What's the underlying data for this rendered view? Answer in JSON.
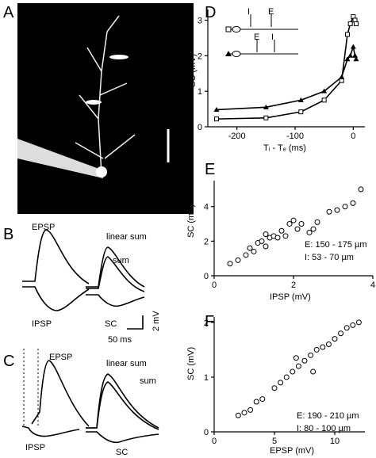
{
  "panels": {
    "A": "A",
    "B": "B",
    "C": "C",
    "D": "D",
    "E": "E",
    "F": "F"
  },
  "B": {
    "epsp": "EPSP",
    "ipsp": "IPSP",
    "linear": "linear sum",
    "sum": "sum",
    "sc": "SC",
    "scale_v": "2 mV",
    "scale_t": "50 ms"
  },
  "C": {
    "epsp": "EPSP",
    "ipsp": "IPSP",
    "linear": "linear sum",
    "sum": "sum",
    "sc": "SC"
  },
  "D": {
    "ylabel": "SC  (mV)",
    "xlabel": "Tᵢ - Tₑ  (ms)",
    "inset": {
      "row1": [
        "I",
        "E"
      ],
      "row2": [
        "E",
        "I"
      ]
    },
    "yticks": [
      "0",
      "1",
      "2",
      "3"
    ],
    "xticks": [
      "-200",
      "-100",
      "0"
    ]
  },
  "E": {
    "ylabel": "SC  (mV)",
    "xlabel": "IPSP  (mV)",
    "yticks": [
      "0",
      "2",
      "4"
    ],
    "xticks": [
      "0",
      "2",
      "4"
    ],
    "legend": [
      "E: 150 - 175 µm",
      "I:  53 - 70 µm"
    ]
  },
  "F": {
    "ylabel": "SC  (mV)",
    "xlabel": "EPSP  (mV)",
    "yticks": [
      "0",
      "1",
      "2"
    ],
    "xticks": [
      "0",
      "5",
      "10"
    ],
    "legend": [
      "E: 190 - 210 µm",
      "I:  80 - 100 µm"
    ]
  },
  "chart_data": [
    {
      "type": "line",
      "x": [
        -235,
        -150,
        -90,
        -50,
        -20,
        -10,
        -5,
        0,
        3,
        5
      ],
      "series": [
        {
          "values": [
            0.22,
            0.25,
            0.42,
            0.75,
            1.3,
            2.6,
            2.9,
            3.1,
            3.0,
            2.9
          ]
        },
        {
          "values": [
            0.48,
            0.55,
            0.75,
            1.0,
            1.4,
            1.9,
            2.0,
            2.25,
            2.0,
            1.9
          ]
        }
      ],
      "xlim": [
        -250,
        20
      ],
      "ylim": [
        0,
        3.3
      ]
    },
    {
      "type": "scatter",
      "xlim": [
        0,
        4
      ],
      "ylim": [
        0,
        5.5
      ],
      "points": [
        [
          0.4,
          0.7
        ],
        [
          0.6,
          0.9
        ],
        [
          0.8,
          1.2
        ],
        [
          0.9,
          1.6
        ],
        [
          1.0,
          1.4
        ],
        [
          1.1,
          1.9
        ],
        [
          1.2,
          2.0
        ],
        [
          1.3,
          1.7
        ],
        [
          1.4,
          2.2
        ],
        [
          1.5,
          2.3
        ],
        [
          1.6,
          2.2
        ],
        [
          1.7,
          2.6
        ],
        [
          1.8,
          2.3
        ],
        [
          1.9,
          3.0
        ],
        [
          2.0,
          3.2
        ],
        [
          2.1,
          2.7
        ],
        [
          2.2,
          3.0
        ],
        [
          2.4,
          2.5
        ],
        [
          2.6,
          3.1
        ],
        [
          2.9,
          3.7
        ],
        [
          3.1,
          3.8
        ],
        [
          3.3,
          4.0
        ],
        [
          3.5,
          4.2
        ],
        [
          3.7,
          5.0
        ],
        [
          2.5,
          2.7
        ],
        [
          1.3,
          2.4
        ]
      ]
    },
    {
      "type": "scatter",
      "xlim": [
        0,
        12.5
      ],
      "ylim": [
        0,
        2.1
      ],
      "points": [
        [
          2.0,
          0.3
        ],
        [
          2.5,
          0.35
        ],
        [
          3,
          0.4
        ],
        [
          3.5,
          0.55
        ],
        [
          4,
          0.6
        ],
        [
          5,
          0.8
        ],
        [
          5.5,
          0.9
        ],
        [
          6,
          1.0
        ],
        [
          6.5,
          1.1
        ],
        [
          7,
          1.2
        ],
        [
          7.5,
          1.3
        ],
        [
          8,
          1.4
        ],
        [
          8.5,
          1.5
        ],
        [
          9,
          1.55
        ],
        [
          9.5,
          1.6
        ],
        [
          10,
          1.7
        ],
        [
          10.5,
          1.8
        ],
        [
          11,
          1.9
        ],
        [
          11.5,
          1.95
        ],
        [
          12,
          2.0
        ],
        [
          6.8,
          1.35
        ],
        [
          8.2,
          1.1
        ]
      ]
    }
  ]
}
